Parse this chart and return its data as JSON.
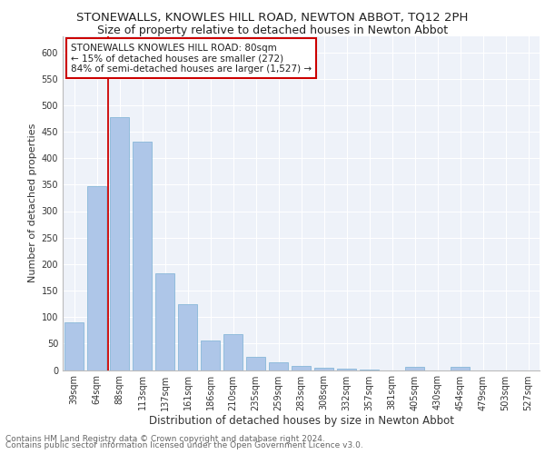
{
  "title1": "STONEWALLS, KNOWLES HILL ROAD, NEWTON ABBOT, TQ12 2PH",
  "title2": "Size of property relative to detached houses in Newton Abbot",
  "xlabel": "Distribution of detached houses by size in Newton Abbot",
  "ylabel": "Number of detached properties",
  "categories": [
    "39sqm",
    "64sqm",
    "88sqm",
    "113sqm",
    "137sqm",
    "161sqm",
    "186sqm",
    "210sqm",
    "235sqm",
    "259sqm",
    "283sqm",
    "308sqm",
    "332sqm",
    "357sqm",
    "381sqm",
    "405sqm",
    "430sqm",
    "454sqm",
    "479sqm",
    "503sqm",
    "527sqm"
  ],
  "values": [
    90,
    348,
    478,
    432,
    182,
    125,
    55,
    68,
    25,
    14,
    8,
    5,
    2,
    1,
    0,
    6,
    0,
    6,
    0,
    0,
    0
  ],
  "bar_color": "#aec6e8",
  "bar_edge_color": "#7ab0d4",
  "vline_x_index": 2,
  "vline_color": "#cc0000",
  "annotation_text": "STONEWALLS KNOWLES HILL ROAD: 80sqm\n← 15% of detached houses are smaller (272)\n84% of semi-detached houses are larger (1,527) →",
  "annotation_box_color": "#ffffff",
  "annotation_box_edge_color": "#cc0000",
  "ylim": [
    0,
    630
  ],
  "yticks": [
    0,
    50,
    100,
    150,
    200,
    250,
    300,
    350,
    400,
    450,
    500,
    550,
    600
  ],
  "footer1": "Contains HM Land Registry data © Crown copyright and database right 2024.",
  "footer2": "Contains public sector information licensed under the Open Government Licence v3.0.",
  "bg_color": "#eef2f9",
  "grid_color": "#ffffff",
  "title1_fontsize": 9.5,
  "title2_fontsize": 9,
  "xlabel_fontsize": 8.5,
  "ylabel_fontsize": 8,
  "tick_fontsize": 7,
  "annotation_fontsize": 7.5,
  "footer_fontsize": 6.5
}
